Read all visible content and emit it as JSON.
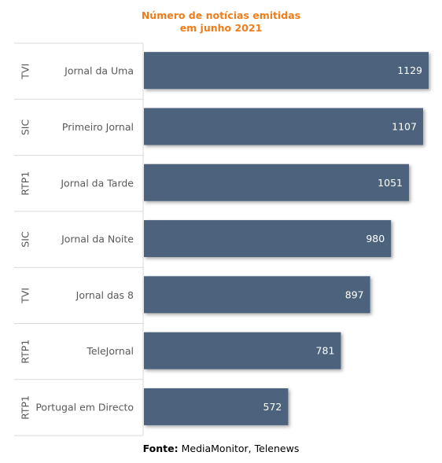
{
  "title_line1": "Número de notícias emitidas",
  "title_line2": "em junho 2021",
  "source_label": "Fonte:",
  "source_text": "MediaMonitor, Telenews",
  "colors": {
    "bar": "#4e637d",
    "title": "#f07c1a",
    "grid": "#d9d9d9",
    "bar_text": "#ffffff",
    "label_text": "#595959"
  },
  "chart_data": {
    "type": "bar",
    "orientation": "horizontal",
    "title": "Número de notícias emitidas em junho 2021",
    "categories": [
      "Jornal da Uma",
      "Primeiro Jornal",
      "Jornal da Tarde",
      "Jornal da Noite",
      "Jornal das 8",
      "TeleJornal",
      "Portugal em Directo"
    ],
    "groups": [
      "TVI",
      "SIC",
      "RTP1",
      "SIC",
      "TVI",
      "RTP1",
      "RTP1"
    ],
    "values": [
      1129,
      1107,
      1051,
      980,
      897,
      781,
      572
    ],
    "xlim": [
      0,
      1129
    ],
    "data_labels": true,
    "grid": false,
    "legend": "none"
  }
}
